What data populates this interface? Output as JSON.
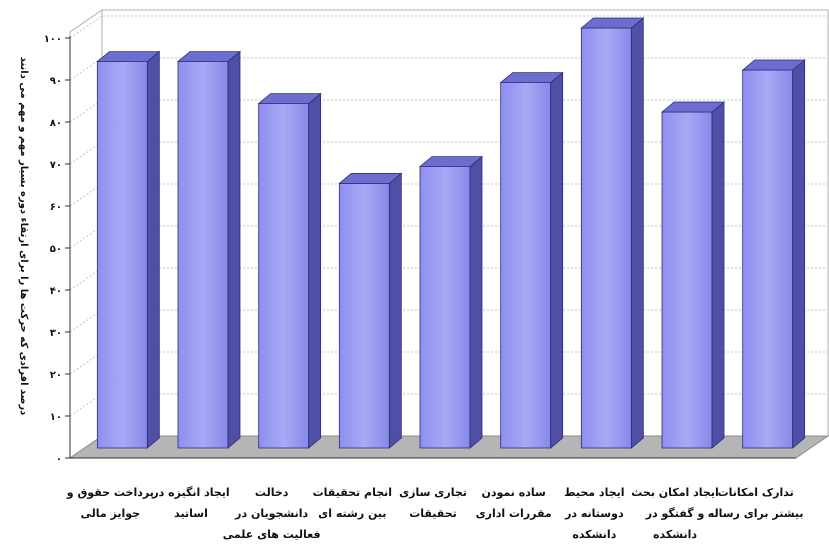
{
  "chart_data": {
    "type": "bar",
    "ylabel": "درصد افرادی که حرکت ها را برای ارتقاء دوره بسیار مهم و مهم می دانند",
    "ylim": [
      0,
      100
    ],
    "yticks": [
      "۰",
      "۱۰",
      "۲۰",
      "۳۰",
      "۴۰",
      "۵۰",
      "۶۰",
      "۷۰",
      "۸۰",
      "۹۰",
      "۱۰۰"
    ],
    "grid": true,
    "legend": "none",
    "colors": {
      "bar_front": "#9c9cf2",
      "bar_side": "#4f4fa6",
      "bar_top": "#6d6dd0",
      "floor": "#b5b5b5"
    },
    "categories": [
      [
        "پرداخت حقوق و",
        "جوایز مالی"
      ],
      [
        "ایجاد انگیزه در",
        "اساتید"
      ],
      [
        "دخالت",
        "دانشجویان در",
        "فعالیت های علمی"
      ],
      [
        "انجام تحقیقات",
        "بین رشته ای"
      ],
      [
        "تجاری سازی",
        "تحقیقات"
      ],
      [
        "ساده نمودن",
        "مقررات اداری"
      ],
      [
        "ایجاد محیط",
        "دوستانه در",
        "دانشکده"
      ],
      [
        "ایجاد امکان بحث",
        "و گفتگو در",
        "دانشکده"
      ],
      [
        "تدارک امکانات",
        "بیشتر برای رساله"
      ]
    ],
    "values": [
      92,
      92,
      82,
      63,
      67,
      87,
      100,
      80,
      90
    ]
  }
}
